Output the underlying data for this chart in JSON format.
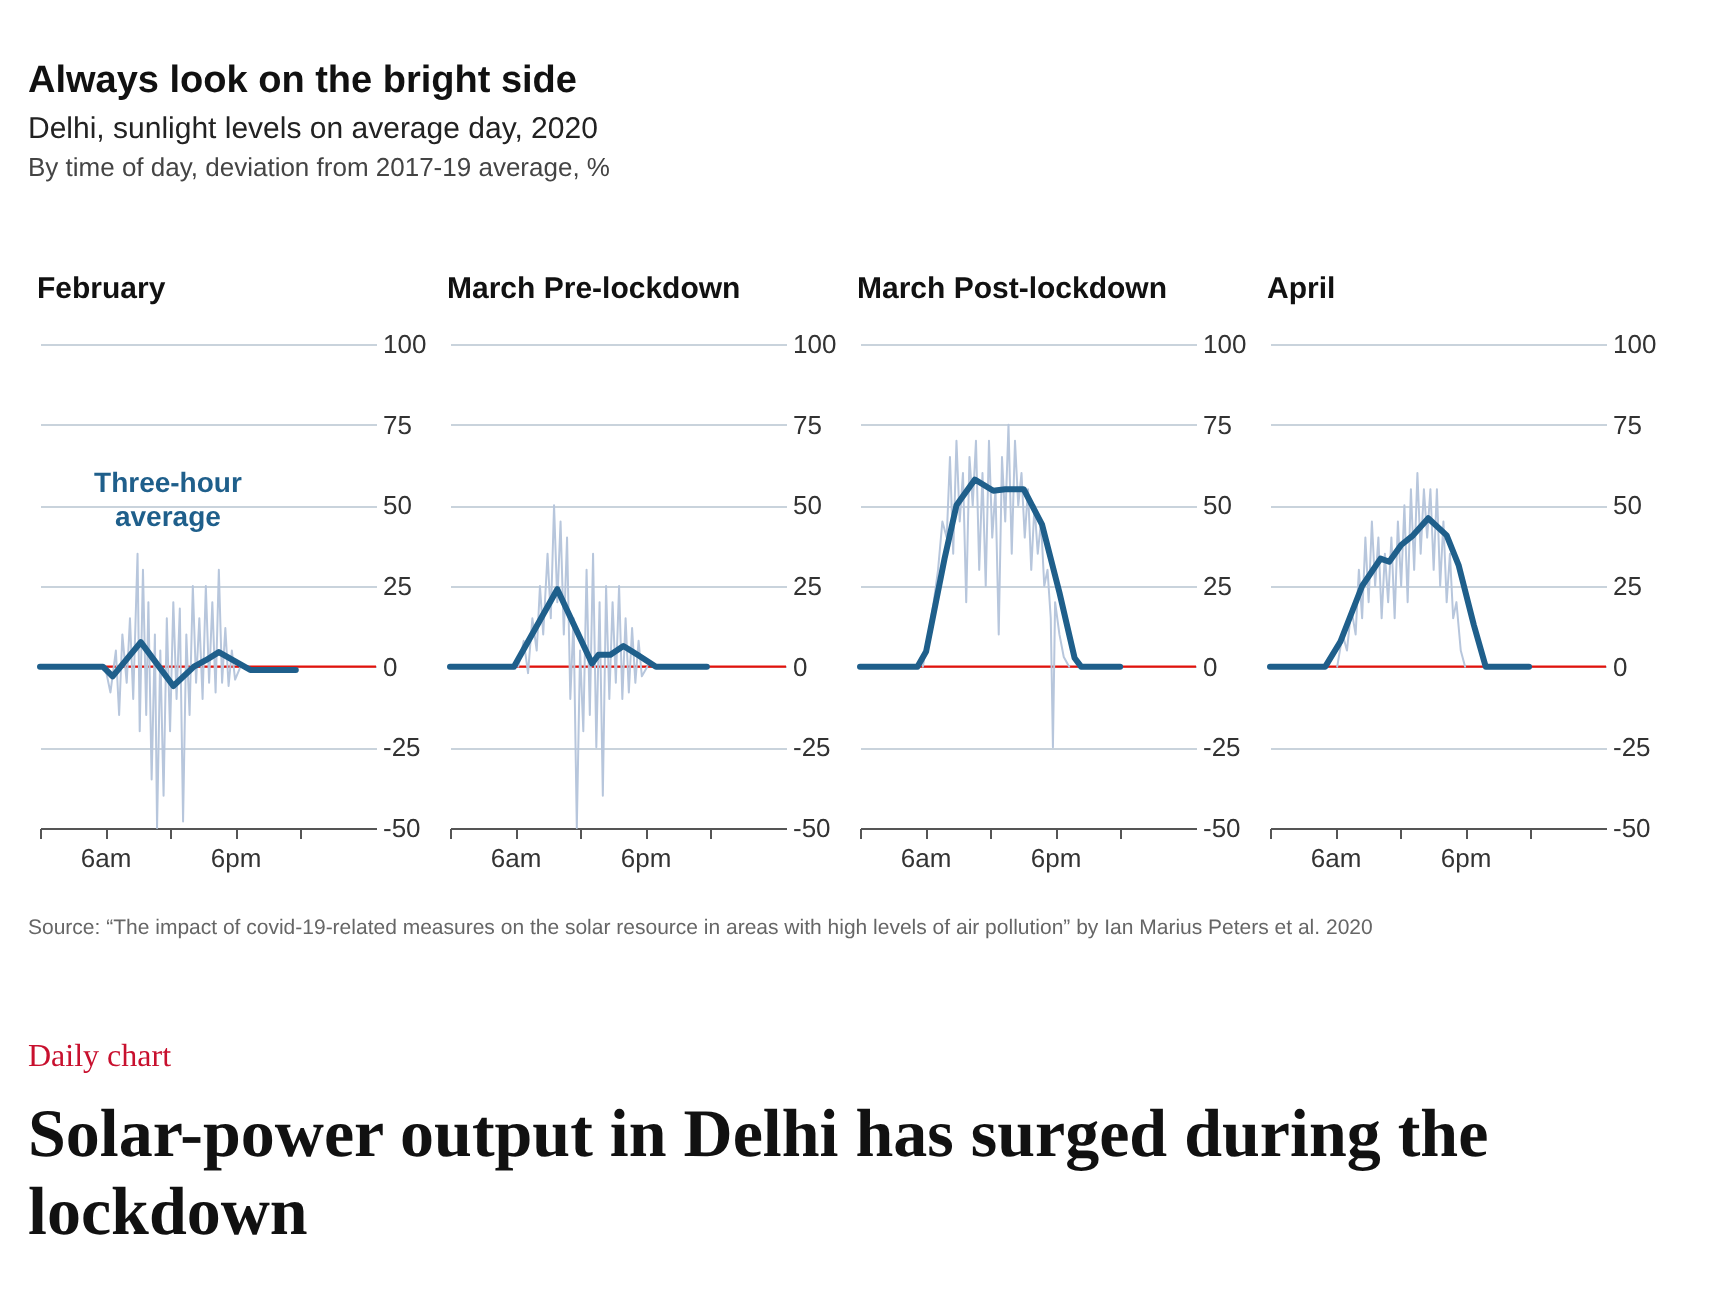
{
  "chart_data": [
    {
      "type": "other",
      "title": "Always look on the bright side",
      "subtitle": "Delhi, sunlight levels on average day, 2020",
      "annotations": [
        "By time of day, deviation from 2017-19 average, %"
      ]
    },
    {
      "type": "line",
      "title": "February",
      "xlim": [
        "2020-01-01T00:00",
        "2020-01-02T07:00"
      ],
      "xticks": [
        {
          "value": "2020-01-01T00:00",
          "label": null
        },
        {
          "value": "2020-01-01T06:00",
          "label": "6am"
        },
        {
          "value": "2020-01-01T12:00",
          "label": null
        },
        {
          "value": "2020-01-01T18:00",
          "label": "6pm"
        },
        {
          "value": "2020-01-02T00:00",
          "label": null
        }
      ],
      "ylim": [
        -50,
        100
      ],
      "yticks": [
        -50,
        -25,
        0,
        25,
        50,
        75,
        100
      ],
      "grid": "y",
      "ref_lines": [
        {
          "axis": "y",
          "value": 0,
          "color": "#e3120b"
        }
      ],
      "series": [
        {
          "color": "#b7c6dc",
          "x": [
            "2020-01-01T06:00",
            "2020-01-01T06:30",
            "2020-01-01T07:00",
            "2020-01-01T07:18",
            "2020-01-01T07:36",
            "2020-01-01T08:00",
            "2020-01-01T08:18",
            "2020-01-01T08:36",
            "2020-01-01T09:00",
            "2020-01-01T09:12",
            "2020-01-01T09:30",
            "2020-01-01T09:48",
            "2020-01-01T10:00",
            "2020-01-01T10:18",
            "2020-01-01T10:36",
            "2020-01-01T10:48",
            "2020-01-01T11:06",
            "2020-01-01T11:24",
            "2020-01-01T11:42",
            "2020-01-01T12:00",
            "2020-01-01T12:18",
            "2020-01-01T12:36",
            "2020-01-01T12:54",
            "2020-01-01T13:12",
            "2020-01-01T13:30",
            "2020-01-01T13:48",
            "2020-01-01T14:06",
            "2020-01-01T14:24",
            "2020-01-01T14:42",
            "2020-01-01T15:00",
            "2020-01-01T15:18",
            "2020-01-01T15:36",
            "2020-01-01T15:54",
            "2020-01-01T16:12",
            "2020-01-01T16:30",
            "2020-01-01T16:48",
            "2020-01-01T17:06",
            "2020-01-01T17:24",
            "2020-01-01T17:42",
            "2020-01-01T18:00",
            "2020-01-01T18:30"
          ],
          "values": [
            0,
            -8,
            5,
            -15,
            10,
            -5,
            15,
            -10,
            35,
            -20,
            30,
            -15,
            20,
            -35,
            10,
            -50,
            5,
            -40,
            15,
            -20,
            20,
            -10,
            18,
            -48,
            10,
            -15,
            25,
            -5,
            15,
            -10,
            25,
            -5,
            20,
            -8,
            30,
            -5,
            12,
            -6,
            5,
            -4,
            0
          ]
        },
        {
          "name": "Three-hour average",
          "color": "#1f5f8b",
          "x": [
            "2020-01-01T00:00",
            "2020-01-01T05:48",
            "2020-01-01T06:42",
            "2020-01-01T09:18",
            "2020-01-01T12:18",
            "2020-01-01T14:12",
            "2020-01-01T15:18",
            "2020-01-01T16:30",
            "2020-01-01T19:24",
            "2020-01-01T23:36"
          ],
          "values": [
            0,
            0,
            -3,
            7.6,
            -6,
            0,
            2,
            4.5,
            -1,
            -1
          ]
        }
      ]
    },
    {
      "type": "line",
      "title": "March Pre-lockdown",
      "xlim": [
        "2020-01-01T00:00",
        "2020-01-02T07:00"
      ],
      "xticks": [
        {
          "value": "2020-01-01T00:00",
          "label": null
        },
        {
          "value": "2020-01-01T06:00",
          "label": "6am"
        },
        {
          "value": "2020-01-01T12:00",
          "label": null
        },
        {
          "value": "2020-01-01T18:00",
          "label": "6pm"
        },
        {
          "value": "2020-01-02T00:00",
          "label": null
        }
      ],
      "ylim": [
        -50,
        100
      ],
      "yticks": [
        -50,
        -25,
        0,
        25,
        50,
        75,
        100
      ],
      "grid": "y",
      "ref_lines": [
        {
          "axis": "y",
          "value": 0,
          "color": "#e3120b"
        }
      ],
      "series": [
        {
          "color": "#b7c6dc",
          "x": [
            "2020-01-01T06:18",
            "2020-01-01T06:48",
            "2020-01-01T07:12",
            "2020-01-01T07:36",
            "2020-01-01T08:00",
            "2020-01-01T08:18",
            "2020-01-01T08:36",
            "2020-01-01T09:00",
            "2020-01-01T09:18",
            "2020-01-01T09:36",
            "2020-01-01T09:54",
            "2020-01-01T10:12",
            "2020-01-01T10:30",
            "2020-01-01T10:48",
            "2020-01-01T11:06",
            "2020-01-01T11:24",
            "2020-01-01T11:42",
            "2020-01-01T12:00",
            "2020-01-01T12:18",
            "2020-01-01T12:36",
            "2020-01-01T12:54",
            "2020-01-01T13:12",
            "2020-01-01T13:30",
            "2020-01-01T13:48",
            "2020-01-01T14:06",
            "2020-01-01T14:24",
            "2020-01-01T14:42",
            "2020-01-01T15:00",
            "2020-01-01T15:18",
            "2020-01-01T15:36",
            "2020-01-01T15:54",
            "2020-01-01T16:12",
            "2020-01-01T16:30",
            "2020-01-01T16:48",
            "2020-01-01T17:06",
            "2020-01-01T17:24",
            "2020-01-01T17:42",
            "2020-01-01T18:12"
          ],
          "values": [
            0,
            8,
            -2,
            15,
            5,
            25,
            10,
            35,
            15,
            50,
            20,
            45,
            10,
            40,
            -10,
            15,
            -50,
            5,
            -20,
            30,
            -15,
            35,
            -25,
            20,
            -40,
            25,
            -10,
            20,
            -5,
            25,
            -10,
            15,
            -8,
            12,
            -5,
            8,
            -3,
            0
          ]
        },
        {
          "color": "#1f5f8b",
          "x": [
            "2020-01-01T00:00",
            "2020-01-01T05:54",
            "2020-01-01T09:54",
            "2020-01-01T13:06",
            "2020-01-01T13:42",
            "2020-01-01T14:48",
            "2020-01-01T16:00",
            "2020-01-01T17:18",
            "2020-01-01T19:00",
            "2020-01-01T23:42"
          ],
          "values": [
            0,
            0,
            24,
            1,
            3.7,
            3.7,
            6.4,
            3.7,
            0,
            0
          ]
        }
      ]
    },
    {
      "type": "line",
      "title": "March Post-lockdown",
      "xlim": [
        "2020-01-01T00:00",
        "2020-01-02T07:00"
      ],
      "xticks": [
        {
          "value": "2020-01-01T00:00",
          "label": null
        },
        {
          "value": "2020-01-01T06:00",
          "label": "6am"
        },
        {
          "value": "2020-01-01T12:00",
          "label": null
        },
        {
          "value": "2020-01-01T18:00",
          "label": "6pm"
        },
        {
          "value": "2020-01-02T00:00",
          "label": null
        }
      ],
      "ylim": [
        -50,
        100
      ],
      "yticks": [
        -50,
        -25,
        0,
        25,
        50,
        75,
        100
      ],
      "grid": "y",
      "ref_lines": [
        {
          "axis": "y",
          "value": 0,
          "color": "#e3120b"
        }
      ],
      "series": [
        {
          "color": "#b7c6dc",
          "x": [
            "2020-01-01T05:48",
            "2020-01-01T06:18",
            "2020-01-01T06:48",
            "2020-01-01T07:12",
            "2020-01-01T07:36",
            "2020-01-01T08:00",
            "2020-01-01T08:18",
            "2020-01-01T08:36",
            "2020-01-01T08:54",
            "2020-01-01T09:12",
            "2020-01-01T09:30",
            "2020-01-01T09:48",
            "2020-01-01T10:06",
            "2020-01-01T10:24",
            "2020-01-01T10:42",
            "2020-01-01T11:00",
            "2020-01-01T11:18",
            "2020-01-01T11:36",
            "2020-01-01T11:54",
            "2020-01-01T12:12",
            "2020-01-01T12:30",
            "2020-01-01T12:48",
            "2020-01-01T13:06",
            "2020-01-01T13:24",
            "2020-01-01T13:42",
            "2020-01-01T14:00",
            "2020-01-01T14:18",
            "2020-01-01T14:36",
            "2020-01-01T14:54",
            "2020-01-01T15:12",
            "2020-01-01T15:30",
            "2020-01-01T15:48",
            "2020-01-01T16:06",
            "2020-01-01T16:24",
            "2020-01-01T16:42",
            "2020-01-01T17:00",
            "2020-01-01T17:18",
            "2020-01-01T17:36",
            "2020-01-01T17:48",
            "2020-01-01T18:00",
            "2020-01-01T18:24",
            "2020-01-01T18:48",
            "2020-01-01T19:18"
          ],
          "values": [
            0,
            10,
            20,
            30,
            45,
            40,
            65,
            35,
            70,
            45,
            60,
            20,
            65,
            50,
            70,
            30,
            60,
            25,
            70,
            40,
            55,
            10,
            65,
            45,
            75,
            35,
            70,
            50,
            60,
            40,
            55,
            30,
            50,
            35,
            45,
            25,
            30,
            15,
            -25,
            20,
            10,
            3,
            0
          ]
        },
        {
          "color": "#1f5f8b",
          "x": [
            "2020-01-01T00:00",
            "2020-01-01T05:18",
            "2020-01-01T06:06",
            "2020-01-01T07:48",
            "2020-01-01T08:54",
            "2020-01-01T10:36",
            "2020-01-01T12:18",
            "2020-01-01T13:24",
            "2020-01-01T15:06",
            "2020-01-01T16:48",
            "2020-01-01T18:24",
            "2020-01-01T19:48",
            "2020-01-01T20:24",
            "2020-01-02T00:00"
          ],
          "values": [
            0,
            0,
            4.7,
            33.5,
            50,
            58,
            54.5,
            55,
            55,
            44,
            23,
            2.7,
            0,
            0
          ]
        }
      ]
    },
    {
      "type": "line",
      "title": "April",
      "xlim": [
        "2020-01-01T00:00",
        "2020-01-02T07:00"
      ],
      "xticks": [
        {
          "value": "2020-01-01T00:00",
          "label": null
        },
        {
          "value": "2020-01-01T06:00",
          "label": "6am"
        },
        {
          "value": "2020-01-01T12:00",
          "label": null
        },
        {
          "value": "2020-01-01T18:00",
          "label": "6pm"
        },
        {
          "value": "2020-01-02T00:00",
          "label": null
        }
      ],
      "ylim": [
        -50,
        100
      ],
      "yticks": [
        -50,
        -25,
        0,
        25,
        50,
        75,
        100
      ],
      "grid": "y",
      "ref_lines": [
        {
          "axis": "y",
          "value": 0,
          "color": "#e3120b"
        }
      ],
      "series": [
        {
          "color": "#b7c6dc",
          "x": [
            "2020-01-01T06:12",
            "2020-01-01T06:42",
            "2020-01-01T07:06",
            "2020-01-01T07:30",
            "2020-01-01T07:54",
            "2020-01-01T08:12",
            "2020-01-01T08:30",
            "2020-01-01T08:48",
            "2020-01-01T09:06",
            "2020-01-01T09:24",
            "2020-01-01T09:42",
            "2020-01-01T10:00",
            "2020-01-01T10:18",
            "2020-01-01T10:36",
            "2020-01-01T10:54",
            "2020-01-01T11:12",
            "2020-01-01T11:30",
            "2020-01-01T11:48",
            "2020-01-01T12:06",
            "2020-01-01T12:24",
            "2020-01-01T12:42",
            "2020-01-01T13:00",
            "2020-01-01T13:18",
            "2020-01-01T13:36",
            "2020-01-01T13:54",
            "2020-01-01T14:12",
            "2020-01-01T14:30",
            "2020-01-01T14:48",
            "2020-01-01T15:06",
            "2020-01-01T15:24",
            "2020-01-01T15:42",
            "2020-01-01T16:00",
            "2020-01-01T16:18",
            "2020-01-01T16:36",
            "2020-01-01T16:54",
            "2020-01-01T17:12",
            "2020-01-01T17:36",
            "2020-01-01T18:00"
          ],
          "values": [
            0,
            10,
            5,
            18,
            10,
            30,
            15,
            40,
            20,
            45,
            25,
            40,
            15,
            35,
            20,
            40,
            15,
            45,
            25,
            50,
            20,
            55,
            30,
            60,
            35,
            55,
            40,
            55,
            30,
            55,
            25,
            45,
            20,
            35,
            15,
            20,
            5,
            0
          ]
        },
        {
          "color": "#1f5f8b",
          "x": [
            "2020-01-01T00:00",
            "2020-01-01T05:06",
            "2020-01-01T06:30",
            "2020-01-01T08:30",
            "2020-01-01T10:12",
            "2020-01-01T11:00",
            "2020-01-01T12:06",
            "2020-01-01T13:12",
            "2020-01-01T14:36",
            "2020-01-01T16:18",
            "2020-01-01T17:24",
            "2020-01-01T18:48",
            "2020-01-01T19:54",
            "2020-01-01T23:54"
          ],
          "values": [
            0,
            0,
            7.8,
            25,
            33.5,
            32.5,
            37.7,
            40.7,
            46,
            40.7,
            31.5,
            13,
            0,
            0
          ]
        }
      ]
    },
    {
      "type": "other",
      "annotations": [
        "Source: “The impact of covid-19-related measures on the solar resource in areas with high levels of air pollution” by Ian Marius Peters et al. 2020",
        "Daily chart",
        "Solar-power output in Delhi has surged during the lockdown"
      ]
    }
  ]
}
